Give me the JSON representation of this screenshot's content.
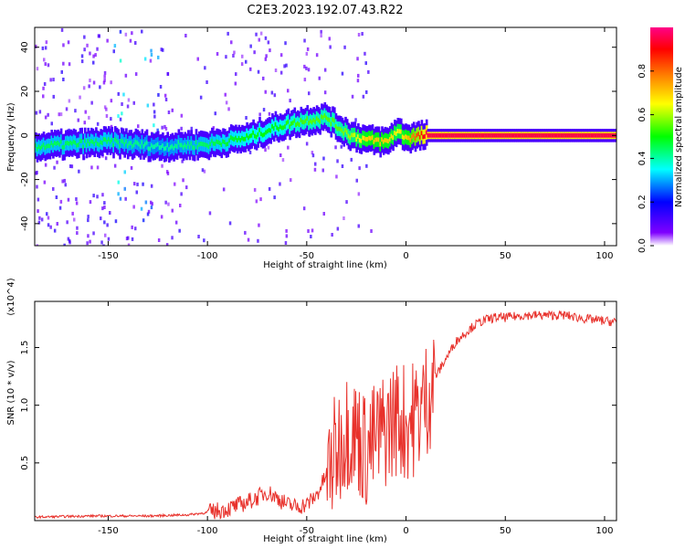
{
  "title": "C2E3.2023.192.07.43.R22",
  "chart_data": [
    {
      "type": "heatmap",
      "title": "C2E3.2023.192.07.43.R22",
      "xlabel": "Height of straight line (km)",
      "ylabel": "Frequency (Hz)",
      "xlim": [
        -187,
        106
      ],
      "ylim": [
        -50,
        49
      ],
      "xticks": [
        -150,
        -100,
        -50,
        0,
        50,
        100
      ],
      "yticks": [
        -40,
        -20,
        0,
        20,
        40
      ],
      "colorbar": {
        "label": "Normalized spectral amplitude",
        "range": [
          0,
          1
        ],
        "ticks": [
          "0.0",
          "0.2",
          "0.4",
          "0.6",
          "0.8"
        ],
        "colors": [
          "#ffffff",
          "#7f00ff",
          "#0000ff",
          "#00ffff",
          "#00ff00",
          "#ffff00",
          "#ff7f00",
          "#ff0000",
          "#ff0088"
        ]
      },
      "ridge": [
        {
          "x": -187,
          "f": -5,
          "a": 0.45
        },
        {
          "x": -150,
          "f": -3,
          "a": 0.45
        },
        {
          "x": -125,
          "f": -5,
          "a": 0.4
        },
        {
          "x": -100,
          "f": -4,
          "a": 0.45
        },
        {
          "x": -80,
          "f": -1,
          "a": 0.5
        },
        {
          "x": -65,
          "f": 4,
          "a": 0.5
        },
        {
          "x": -50,
          "f": 7,
          "a": 0.55
        },
        {
          "x": -40,
          "f": 8,
          "a": 0.55
        },
        {
          "x": -35,
          "f": 4,
          "a": 0.55
        },
        {
          "x": -28,
          "f": 0,
          "a": 0.6
        },
        {
          "x": -20,
          "f": -2,
          "a": 0.7
        },
        {
          "x": -10,
          "f": -3,
          "a": 0.7
        },
        {
          "x": -5,
          "f": 2,
          "a": 0.65
        },
        {
          "x": 0,
          "f": -1,
          "a": 0.7
        },
        {
          "x": 10,
          "f": 0,
          "a": 0.95
        },
        {
          "x": 106,
          "f": 0,
          "a": 0.95
        }
      ]
    },
    {
      "type": "line",
      "xlabel": "Height of straight line (km)",
      "ylabel": "SNR (10 * v/v)",
      "y_multiplier": "(x10^4)",
      "xlim": [
        -187,
        106
      ],
      "ylim": [
        0,
        1.9
      ],
      "xticks": [
        -150,
        -100,
        -50,
        0,
        50,
        100
      ],
      "yticks": [
        0.5,
        1.0,
        1.5
      ],
      "color": "#e8312b",
      "series": [
        {
          "x": [
            -187,
            -160,
            -130,
            -110,
            -100,
            -90,
            -80,
            -75,
            -70,
            -65,
            -60,
            -55,
            -50,
            -45,
            -40,
            -35,
            -30,
            -25,
            -20,
            -15,
            -10,
            -5,
            0,
            5,
            10,
            15,
            20,
            25,
            30,
            35,
            40,
            45,
            50,
            55,
            60,
            70,
            80,
            90,
            100,
            106
          ],
          "values": [
            0.03,
            0.04,
            0.04,
            0.05,
            0.07,
            0.1,
            0.16,
            0.2,
            0.25,
            0.2,
            0.14,
            0.12,
            0.14,
            0.22,
            0.4,
            0.6,
            0.8,
            0.75,
            0.6,
            0.7,
            0.8,
            0.9,
            0.85,
            0.9,
            1.05,
            1.25,
            1.4,
            1.55,
            1.63,
            1.7,
            1.74,
            1.76,
            1.76,
            1.77,
            1.78,
            1.78,
            1.78,
            1.75,
            1.73,
            1.72
          ]
        }
      ]
    }
  ]
}
